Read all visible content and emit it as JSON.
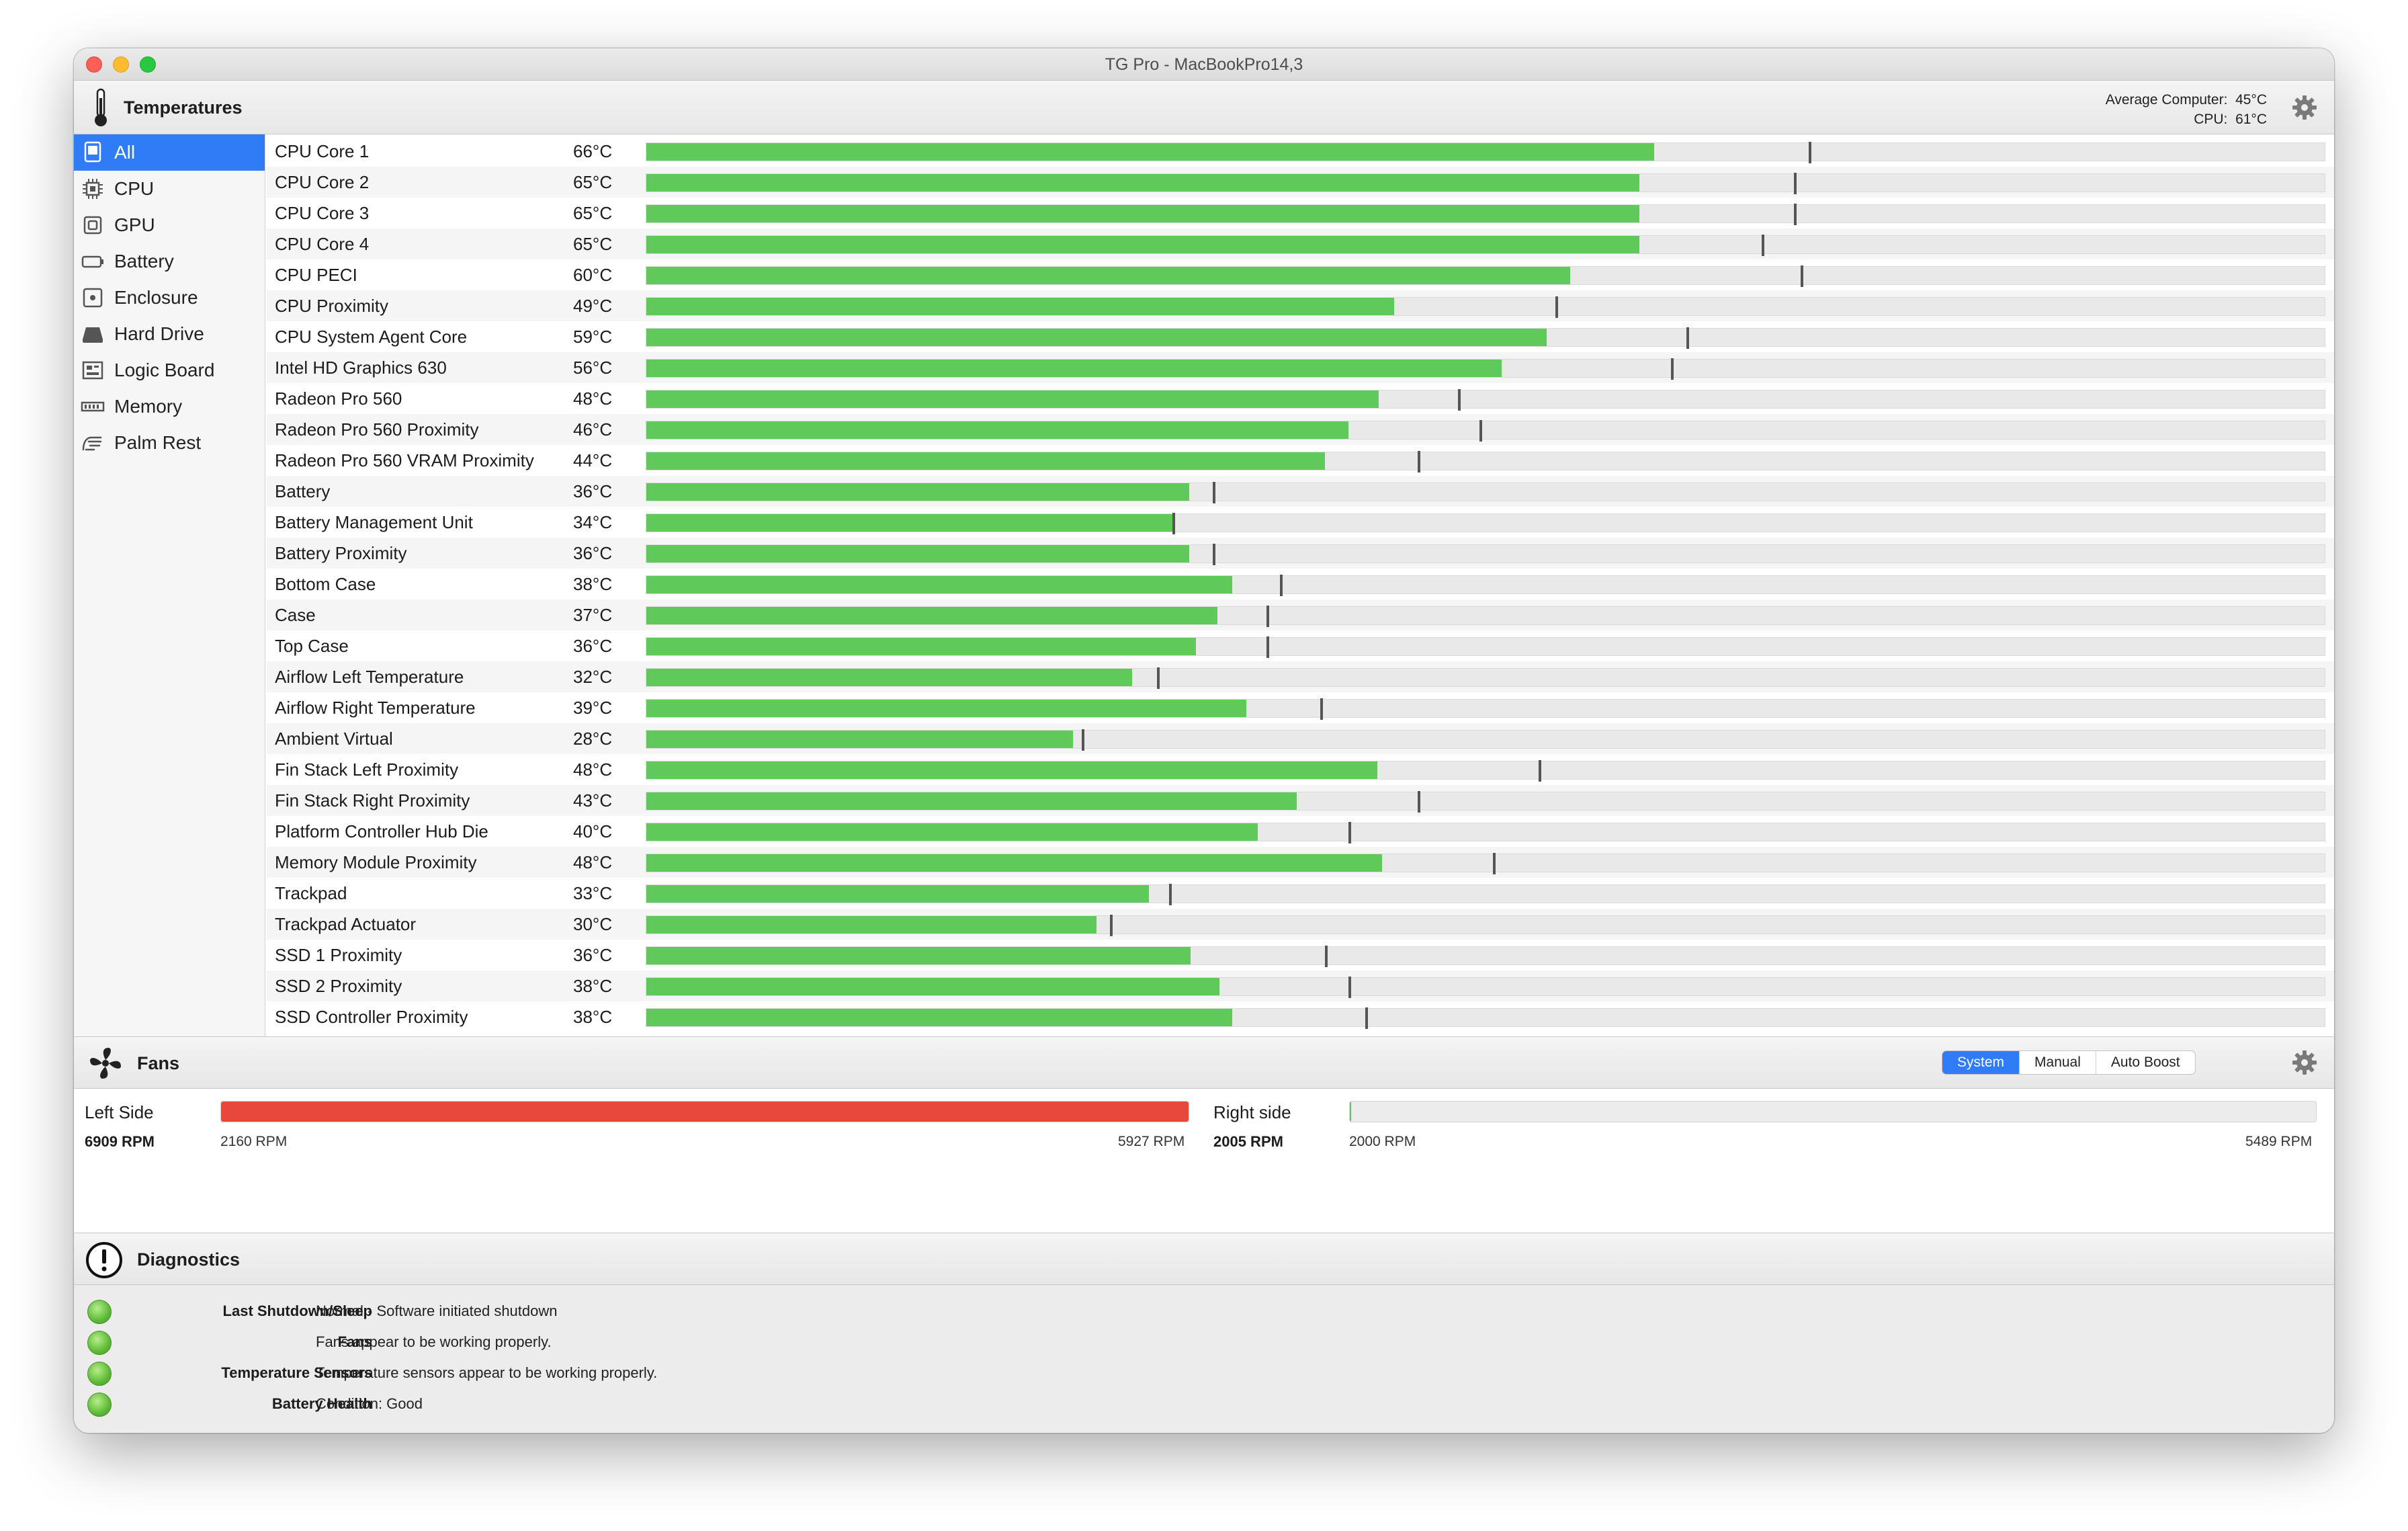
{
  "window": {
    "title": "TG Pro - MacBookPro14,3"
  },
  "temperatures": {
    "header": "Temperatures",
    "average_label": "Average Computer:",
    "average_value": "45°C",
    "cpu_label": "CPU:",
    "cpu_value": "61°C",
    "icon": "thermometer-icon"
  },
  "sidebar": {
    "items": [
      {
        "label": "All",
        "icon": "all-sensors-icon",
        "selected": true
      },
      {
        "label": "CPU",
        "icon": "cpu-chip-icon"
      },
      {
        "label": "GPU",
        "icon": "gpu-chip-icon"
      },
      {
        "label": "Battery",
        "icon": "battery-icon"
      },
      {
        "label": "Enclosure",
        "icon": "enclosure-icon"
      },
      {
        "label": "Hard Drive",
        "icon": "hard-drive-icon"
      },
      {
        "label": "Logic Board",
        "icon": "logic-board-icon"
      },
      {
        "label": "Memory",
        "icon": "memory-icon"
      },
      {
        "label": "Palm Rest",
        "icon": "palm-rest-icon"
      }
    ]
  },
  "sensors": [
    {
      "name": "CPU Core 1",
      "temp": "66°C",
      "level": 0.6,
      "max_level": 0.692
    },
    {
      "name": "CPU Core 2",
      "temp": "65°C",
      "level": 0.591,
      "max_level": 0.683
    },
    {
      "name": "CPU Core 3",
      "temp": "65°C",
      "level": 0.591,
      "max_level": 0.683
    },
    {
      "name": "CPU Core 4",
      "temp": "65°C",
      "level": 0.591,
      "max_level": 0.664
    },
    {
      "name": "CPU PECI",
      "temp": "60°C",
      "level": 0.55,
      "max_level": 0.687
    },
    {
      "name": "CPU Proximity",
      "temp": "49°C",
      "level": 0.445,
      "max_level": 0.541
    },
    {
      "name": "CPU System Agent Core",
      "temp": "59°C",
      "level": 0.536,
      "max_level": 0.619
    },
    {
      "name": "Intel HD Graphics 630",
      "temp": "56°C",
      "level": 0.509,
      "max_level": 0.61
    },
    {
      "name": "Radeon Pro 560",
      "temp": "48°C",
      "level": 0.436,
      "max_level": 0.483
    },
    {
      "name": "Radeon Pro 560 Proximity",
      "temp": "46°C",
      "level": 0.418,
      "max_level": 0.496
    },
    {
      "name": "Radeon Pro 560 VRAM Proximity",
      "temp": "44°C",
      "level": 0.404,
      "max_level": 0.459
    },
    {
      "name": "Battery",
      "temp": "36°C",
      "level": 0.323,
      "max_level": 0.337
    },
    {
      "name": "Battery Management Unit",
      "temp": "34°C",
      "level": 0.313,
      "max_level": 0.313
    },
    {
      "name": "Battery Proximity",
      "temp": "36°C",
      "level": 0.323,
      "max_level": 0.337
    },
    {
      "name": "Bottom Case",
      "temp": "38°C",
      "level": 0.349,
      "max_level": 0.377
    },
    {
      "name": "Case",
      "temp": "37°C",
      "level": 0.34,
      "max_level": 0.369
    },
    {
      "name": "Top Case",
      "temp": "36°C",
      "level": 0.327,
      "max_level": 0.369
    },
    {
      "name": "Airflow Left Temperature",
      "temp": "32°C",
      "level": 0.289,
      "max_level": 0.304
    },
    {
      "name": "Airflow Right Temperature",
      "temp": "39°C",
      "level": 0.357,
      "max_level": 0.401
    },
    {
      "name": "Ambient Virtual",
      "temp": "28°C",
      "level": 0.254,
      "max_level": 0.259
    },
    {
      "name": "Fin Stack Left Proximity",
      "temp": "48°C",
      "level": 0.435,
      "max_level": 0.531
    },
    {
      "name": "Fin Stack Right Proximity",
      "temp": "43°C",
      "level": 0.387,
      "max_level": 0.459
    },
    {
      "name": "Platform Controller Hub Die",
      "temp": "40°C",
      "level": 0.364,
      "max_level": 0.418
    },
    {
      "name": "Memory Module Proximity",
      "temp": "48°C",
      "level": 0.438,
      "max_level": 0.504
    },
    {
      "name": "Trackpad",
      "temp": "33°C",
      "level": 0.299,
      "max_level": 0.311
    },
    {
      "name": "Trackpad Actuator",
      "temp": "30°C",
      "level": 0.268,
      "max_level": 0.276
    },
    {
      "name": "SSD 1 Proximity",
      "temp": "36°C",
      "level": 0.324,
      "max_level": 0.404
    },
    {
      "name": "SSD 2 Proximity",
      "temp": "38°C",
      "level": 0.341,
      "max_level": 0.418
    },
    {
      "name": "SSD Controller Proximity",
      "temp": "38°C",
      "level": 0.349,
      "max_level": 0.428
    }
  ],
  "fans": {
    "header": "Fans",
    "icon": "fan-icon",
    "modes": [
      "System",
      "Manual",
      "Auto Boost"
    ],
    "active_mode": "System",
    "left": {
      "label": "Left Side",
      "current_rpm": "6909 RPM",
      "min_rpm": "2160 RPM",
      "max_rpm": "5927 RPM",
      "level": 1.0
    },
    "right": {
      "label": "Right side",
      "current_rpm": "2005 RPM",
      "min_rpm": "2000 RPM",
      "max_rpm": "5489 RPM",
      "level": 0.0015
    }
  },
  "diagnostics": {
    "header": "Diagnostics",
    "icon": "exclamation-circle-icon",
    "items": [
      {
        "label": "Last Shutdown/Sleep",
        "value": "Normal - Software initiated shutdown",
        "status": "green"
      },
      {
        "label": "Fans",
        "value": "Fans appear to be working properly.",
        "status": "green"
      },
      {
        "label": "Temperature Sensors",
        "value": "Temperature sensors appear to be working properly.",
        "status": "green"
      },
      {
        "label": "Battery Health",
        "value": "Condition: Good",
        "status": "green"
      }
    ]
  },
  "colors": {
    "accent": "#2f7cf6",
    "bar_green": "#5fc95a",
    "fan_red": "#e8483b",
    "status_green": "#5dba36"
  }
}
